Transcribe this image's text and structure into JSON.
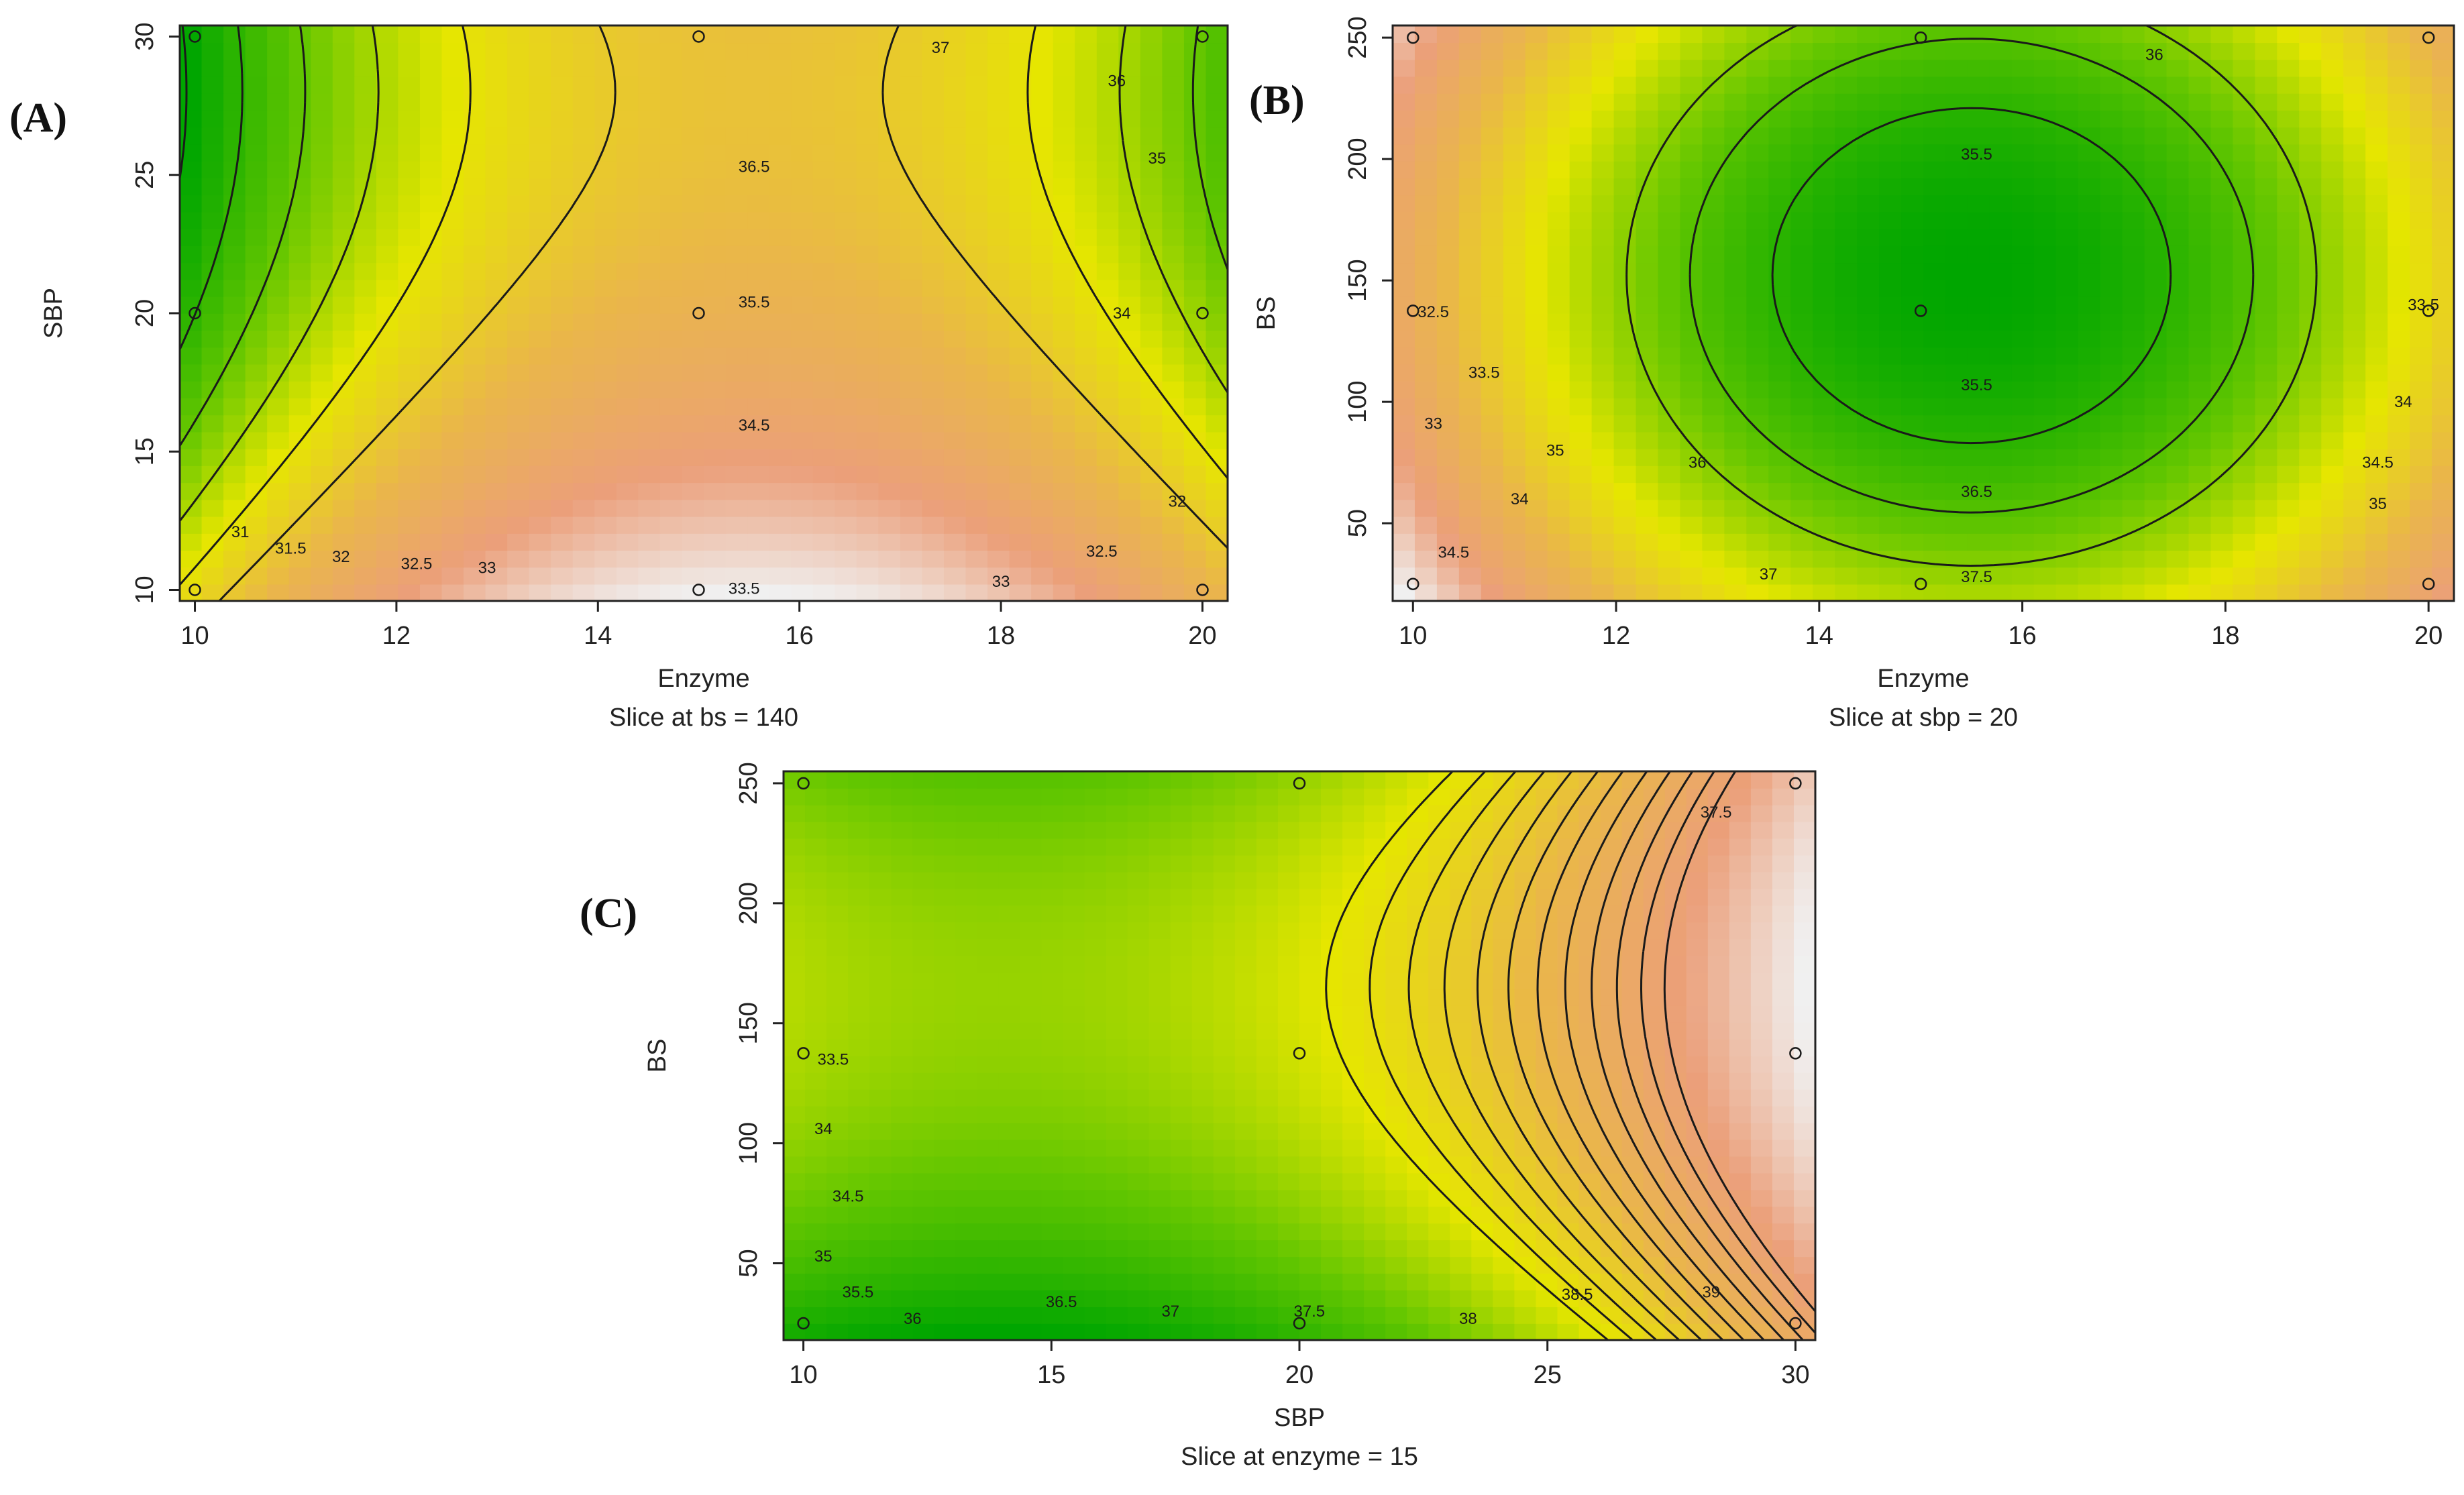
{
  "chart_data": [
    {
      "type": "contour",
      "panel_label": "(A)",
      "xlabel": "Enzyme",
      "ylabel": "SBP",
      "slice_label": "Slice at bs = 140",
      "xlim": [
        10,
        20
      ],
      "ylim": [
        10,
        30
      ],
      "x_ticks": [
        10,
        12,
        14,
        16,
        18,
        20
      ],
      "y_ticks": [
        10,
        15,
        20,
        25,
        30
      ],
      "model": {
        "cx": 15.5,
        "cy": 28,
        "a": 0.085,
        "b": 0.0065,
        "base": 37.15,
        "domain_x": [
          9.85,
          20.25
        ],
        "domain_y": [
          9.6,
          30.4
        ]
      },
      "levels": [
        31,
        31.5,
        32,
        32.5,
        33,
        33.5,
        34,
        34.5,
        35,
        35.5,
        36,
        36.5,
        37
      ],
      "contour_labels": [
        {
          "text": "31",
          "x": 10.45,
          "y": 12.1
        },
        {
          "text": "31.5",
          "x": 10.95,
          "y": 11.5
        },
        {
          "text": "32",
          "x": 11.45,
          "y": 11.2
        },
        {
          "text": "32.5",
          "x": 12.2,
          "y": 10.95
        },
        {
          "text": "33",
          "x": 12.9,
          "y": 10.8
        },
        {
          "text": "33.5",
          "x": 15.45,
          "y": 10.05
        },
        {
          "text": "34.5",
          "x": 15.55,
          "y": 15.95
        },
        {
          "text": "35.5",
          "x": 15.55,
          "y": 20.4
        },
        {
          "text": "36.5",
          "x": 15.55,
          "y": 25.3
        },
        {
          "text": "37",
          "x": 17.4,
          "y": 29.6
        },
        {
          "text": "36",
          "x": 19.15,
          "y": 28.4
        },
        {
          "text": "35",
          "x": 19.55,
          "y": 25.6
        },
        {
          "text": "34",
          "x": 19.2,
          "y": 20.0
        },
        {
          "text": "33",
          "x": 18.0,
          "y": 10.3
        },
        {
          "text": "32.5",
          "x": 19.0,
          "y": 11.4
        },
        {
          "text": "32",
          "x": 19.75,
          "y": 13.2
        }
      ],
      "design_points": [
        [
          10,
          10
        ],
        [
          10,
          20
        ],
        [
          10,
          30
        ],
        [
          15,
          10
        ],
        [
          15,
          20
        ],
        [
          15,
          30
        ],
        [
          20,
          10
        ],
        [
          20,
          20
        ],
        [
          20,
          30
        ]
      ]
    },
    {
      "type": "contour",
      "panel_label": "(B)",
      "xlabel": "Enzyme",
      "ylabel": "BS",
      "slice_label": "Slice at sbp = 20",
      "xlim": [
        10,
        20
      ],
      "ylim": [
        25,
        250
      ],
      "x_ticks": [
        10,
        12,
        14,
        16,
        18,
        20
      ],
      "y_ticks": [
        50,
        100,
        150,
        200,
        250
      ],
      "model": {
        "cx": 15.5,
        "cy": 152,
        "a": -0.13,
        "b": 0.000105,
        "base": 36.0,
        "domain_x": [
          9.8,
          20.25
        ],
        "domain_y": [
          18,
          255
        ]
      },
      "levels": [
        32.5,
        33,
        33.5,
        34,
        34.5,
        35,
        35.5,
        36,
        36.5,
        37,
        37.5
      ],
      "contour_labels": [
        {
          "text": "36",
          "x": 17.3,
          "y": 243
        },
        {
          "text": "35.5",
          "x": 15.55,
          "y": 202
        },
        {
          "text": "35.5",
          "x": 15.55,
          "y": 107
        },
        {
          "text": "36.5",
          "x": 15.55,
          "y": 63
        },
        {
          "text": "36",
          "x": 12.8,
          "y": 75
        },
        {
          "text": "37",
          "x": 13.5,
          "y": 29
        },
        {
          "text": "37.5",
          "x": 15.55,
          "y": 28
        },
        {
          "text": "35",
          "x": 11.4,
          "y": 80
        },
        {
          "text": "34",
          "x": 11.05,
          "y": 60
        },
        {
          "text": "34.5",
          "x": 10.4,
          "y": 38
        },
        {
          "text": "33.5",
          "x": 10.7,
          "y": 112
        },
        {
          "text": "33",
          "x": 10.2,
          "y": 91
        },
        {
          "text": "32.5",
          "x": 10.2,
          "y": 137
        },
        {
          "text": "33.5",
          "x": 19.95,
          "y": 140
        },
        {
          "text": "34",
          "x": 19.75,
          "y": 100
        },
        {
          "text": "34.5",
          "x": 19.5,
          "y": 75
        },
        {
          "text": "35",
          "x": 19.5,
          "y": 58
        }
      ],
      "design_points": [
        [
          10,
          25
        ],
        [
          10,
          137.5
        ],
        [
          10,
          250
        ],
        [
          15,
          25
        ],
        [
          15,
          137.5
        ],
        [
          15,
          250
        ],
        [
          20,
          25
        ],
        [
          20,
          137.5
        ],
        [
          20,
          250
        ]
      ]
    },
    {
      "type": "contour",
      "panel_label": "(C)",
      "xlabel": "SBP",
      "ylabel": "BS",
      "slice_label": "Slice at enzyme = 15",
      "xlim": [
        10,
        30
      ],
      "ylim": [
        25,
        250
      ],
      "x_ticks": [
        10,
        15,
        20,
        25,
        30
      ],
      "y_ticks": [
        50,
        100,
        150,
        200,
        250
      ],
      "model": {
        "cx": 17.5,
        "cy": 165,
        "a": -0.04,
        "b": -0.0002,
        "sx": 0.29,
        "base": 32.25,
        "domain_x": [
          9.6,
          30.4
        ],
        "domain_y": [
          18,
          255
        ]
      },
      "levels": [
        33.5,
        34,
        34.5,
        35,
        35.5,
        36,
        36.5,
        37,
        37.5,
        38,
        38.5,
        39
      ],
      "contour_labels": [
        {
          "text": "33.5",
          "x": 10.6,
          "y": 135
        },
        {
          "text": "34",
          "x": 10.4,
          "y": 106
        },
        {
          "text": "34.5",
          "x": 10.9,
          "y": 78
        },
        {
          "text": "35",
          "x": 10.4,
          "y": 53
        },
        {
          "text": "35.5",
          "x": 11.1,
          "y": 38
        },
        {
          "text": "36",
          "x": 12.2,
          "y": 27
        },
        {
          "text": "36.5",
          "x": 15.2,
          "y": 34
        },
        {
          "text": "37",
          "x": 17.4,
          "y": 30
        },
        {
          "text": "37.5",
          "x": 20.2,
          "y": 30
        },
        {
          "text": "38",
          "x": 23.4,
          "y": 27
        },
        {
          "text": "38.5",
          "x": 25.6,
          "y": 37
        },
        {
          "text": "39",
          "x": 28.3,
          "y": 38
        },
        {
          "text": "37.5",
          "x": 28.4,
          "y": 238
        }
      ],
      "design_points": [
        [
          10,
          25
        ],
        [
          10,
          137.5
        ],
        [
          10,
          250
        ],
        [
          20,
          25
        ],
        [
          20,
          137.5
        ],
        [
          20,
          250
        ],
        [
          30,
          25
        ],
        [
          30,
          137.5
        ],
        [
          30,
          250
        ]
      ]
    }
  ],
  "colormap": [
    "#00a600",
    "#63c600",
    "#e6e600",
    "#eab64a",
    "#eb9f7a",
    "#f0f0f0"
  ]
}
